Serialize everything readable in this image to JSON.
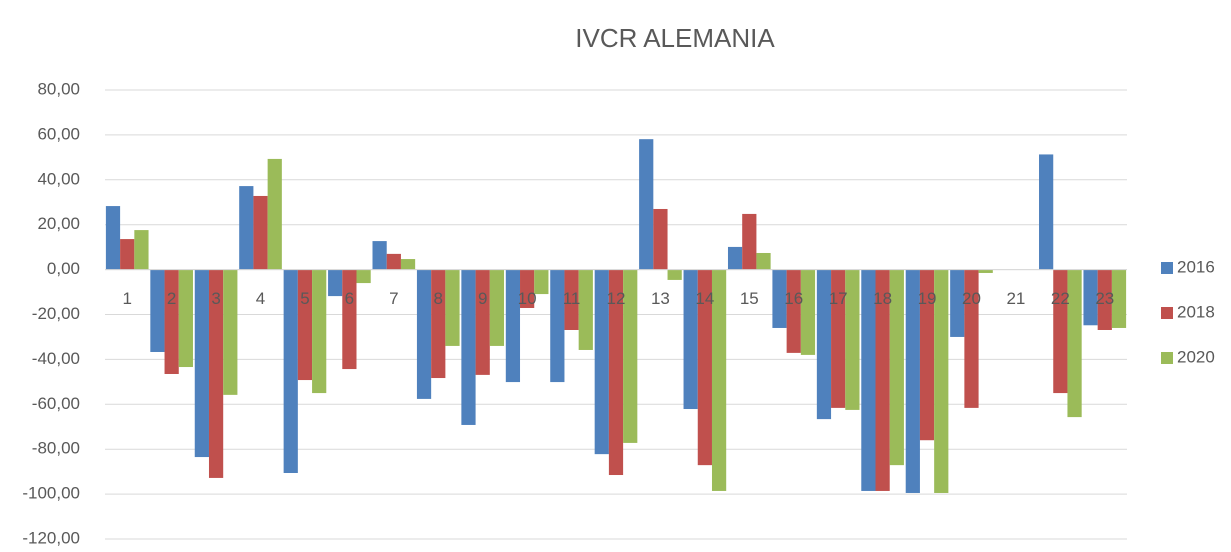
{
  "chart_data": {
    "type": "bar",
    "title": "IVCR ALEMANIA",
    "categories": [
      "1",
      "2",
      "3",
      "4",
      "5",
      "6",
      "7",
      "8",
      "9",
      "10",
      "11",
      "12",
      "13",
      "14",
      "15",
      "16",
      "17",
      "18",
      "19",
      "20",
      "21",
      "22",
      "23"
    ],
    "series": [
      {
        "name": "2016",
        "color": "#4f81bd",
        "values": [
          28.3,
          -36.7,
          -83.5,
          37.2,
          -90.6,
          -11.8,
          12.7,
          -57.6,
          -69.2,
          -50.1,
          -50.1,
          -82.2,
          58.1,
          -62.1,
          10.1,
          -26,
          -66.6,
          -98.6,
          -99.5,
          -30,
          0,
          51.3,
          -24.8
        ]
      },
      {
        "name": "2018",
        "color": "#c0504d",
        "values": [
          13.6,
          -46.5,
          -92.8,
          32.8,
          -49.2,
          -44.3,
          7,
          -48.3,
          -46.9,
          -17.1,
          -26.9,
          -91.5,
          27,
          -87.1,
          24.8,
          -37.1,
          -61.6,
          -98.6,
          -76,
          -61.6,
          0,
          -55,
          -26.9
        ]
      },
      {
        "name": "2020",
        "color": "#9bbb59",
        "values": [
          17.6,
          -43.4,
          -55.8,
          49.3,
          -55,
          -6,
          4.7,
          -34,
          -34,
          -10.9,
          -35.8,
          -77.2,
          -4.6,
          -98.6,
          7.4,
          -38,
          -62.5,
          -87.1,
          -99.5,
          -1.5,
          0,
          -65.7,
          -26
        ]
      }
    ],
    "ylim": [
      -120,
      80
    ],
    "yticks": [
      {
        "value": -120,
        "label": "-120,00"
      },
      {
        "value": -100,
        "label": "-100,00"
      },
      {
        "value": -80,
        "label": "-80,00"
      },
      {
        "value": -60,
        "label": "-60,00"
      },
      {
        "value": -40,
        "label": "-40,00"
      },
      {
        "value": -20,
        "label": "-20,00"
      },
      {
        "value": 0,
        "label": "0,00"
      },
      {
        "value": 20,
        "label": "20,00"
      },
      {
        "value": 40,
        "label": "40,00"
      },
      {
        "value": 60,
        "label": "60,00"
      },
      {
        "value": 80,
        "label": "80,00"
      }
    ],
    "grid": true,
    "legend": "right"
  }
}
